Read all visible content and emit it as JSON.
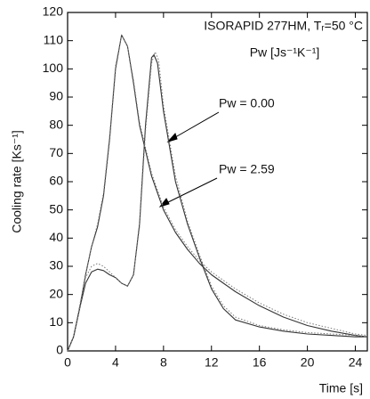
{
  "chart_data": {
    "type": "line",
    "title": "ISORAPID 277HM, Tᵣ=50 °C",
    "subtitle": "Pw [Js⁻¹K⁻¹]",
    "x_label": "Time [s]",
    "y_label": "Cooling rate [Ks⁻¹]",
    "xlim": [
      0,
      25
    ],
    "xticks": [
      0,
      4,
      8,
      12,
      16,
      20,
      24
    ],
    "ylim": [
      0,
      120
    ],
    "yticks": [
      0,
      10,
      20,
      30,
      40,
      50,
      60,
      70,
      80,
      90,
      100,
      110,
      120
    ],
    "series": [
      {
        "name": "Pw = 0.00",
        "color": "#333333",
        "style": "solid",
        "x": [
          0,
          0.5,
          1,
          1.5,
          2,
          2.5,
          3,
          3.5,
          4,
          4.5,
          5,
          5.5,
          6,
          6.5,
          7,
          7.2,
          7.5,
          8,
          9,
          10,
          11,
          12,
          13,
          14,
          16,
          18,
          20,
          22,
          24,
          25
        ],
        "values": [
          0,
          5,
          15,
          24,
          28,
          29,
          28.5,
          27,
          26,
          24,
          23,
          27,
          45,
          80,
          104,
          105,
          102,
          85,
          60,
          45,
          33,
          22,
          15,
          11,
          8.5,
          7,
          6,
          5.5,
          5,
          5
        ]
      },
      {
        "name": "Pw = 2.59",
        "color": "#333333",
        "style": "solid",
        "x": [
          0,
          0.5,
          1,
          1.5,
          2,
          2.5,
          3,
          3.5,
          4,
          4.5,
          5,
          5.5,
          6,
          7,
          8,
          9,
          10,
          11,
          12,
          13,
          14,
          16,
          18,
          20,
          22,
          24,
          25
        ],
        "values": [
          0,
          5,
          15,
          27,
          37,
          44,
          55,
          75,
          100,
          112,
          108,
          95,
          80,
          62,
          50,
          42,
          36,
          31,
          27,
          24,
          21,
          16,
          12,
          9,
          7,
          5.5,
          5
        ]
      },
      {
        "color": "#777777",
        "style": "dotted",
        "x": [
          0,
          0.5,
          1,
          1.5,
          2,
          2.5,
          3,
          3.5,
          4,
          4.5,
          5,
          5.5,
          6,
          6.5,
          7,
          7.3,
          7.6,
          8,
          9,
          10,
          11,
          12,
          13,
          14,
          16,
          18,
          20,
          22,
          24,
          25
        ],
        "values": [
          0,
          5,
          16,
          26,
          30,
          31,
          30,
          28,
          26,
          24,
          23,
          27,
          44,
          78,
          102,
          106,
          103,
          87,
          62,
          46,
          34,
          23,
          16,
          12,
          9,
          7.5,
          6.5,
          6,
          5.5,
          5
        ]
      },
      {
        "color": "#777777",
        "style": "dotted",
        "x": [
          0,
          0.5,
          1,
          1.5,
          2,
          2.5,
          3,
          3.5,
          4,
          4.5,
          5,
          5.5,
          6,
          7,
          8,
          9,
          10,
          11,
          12,
          13,
          14,
          16,
          18,
          20,
          22,
          24,
          25
        ],
        "values": [
          0,
          5,
          15,
          27,
          37,
          45,
          56,
          76,
          101,
          112,
          108,
          96,
          81,
          63,
          51,
          43,
          37,
          32,
          28,
          25,
          22,
          17,
          13,
          10,
          8,
          6,
          5.5
        ]
      }
    ]
  }
}
